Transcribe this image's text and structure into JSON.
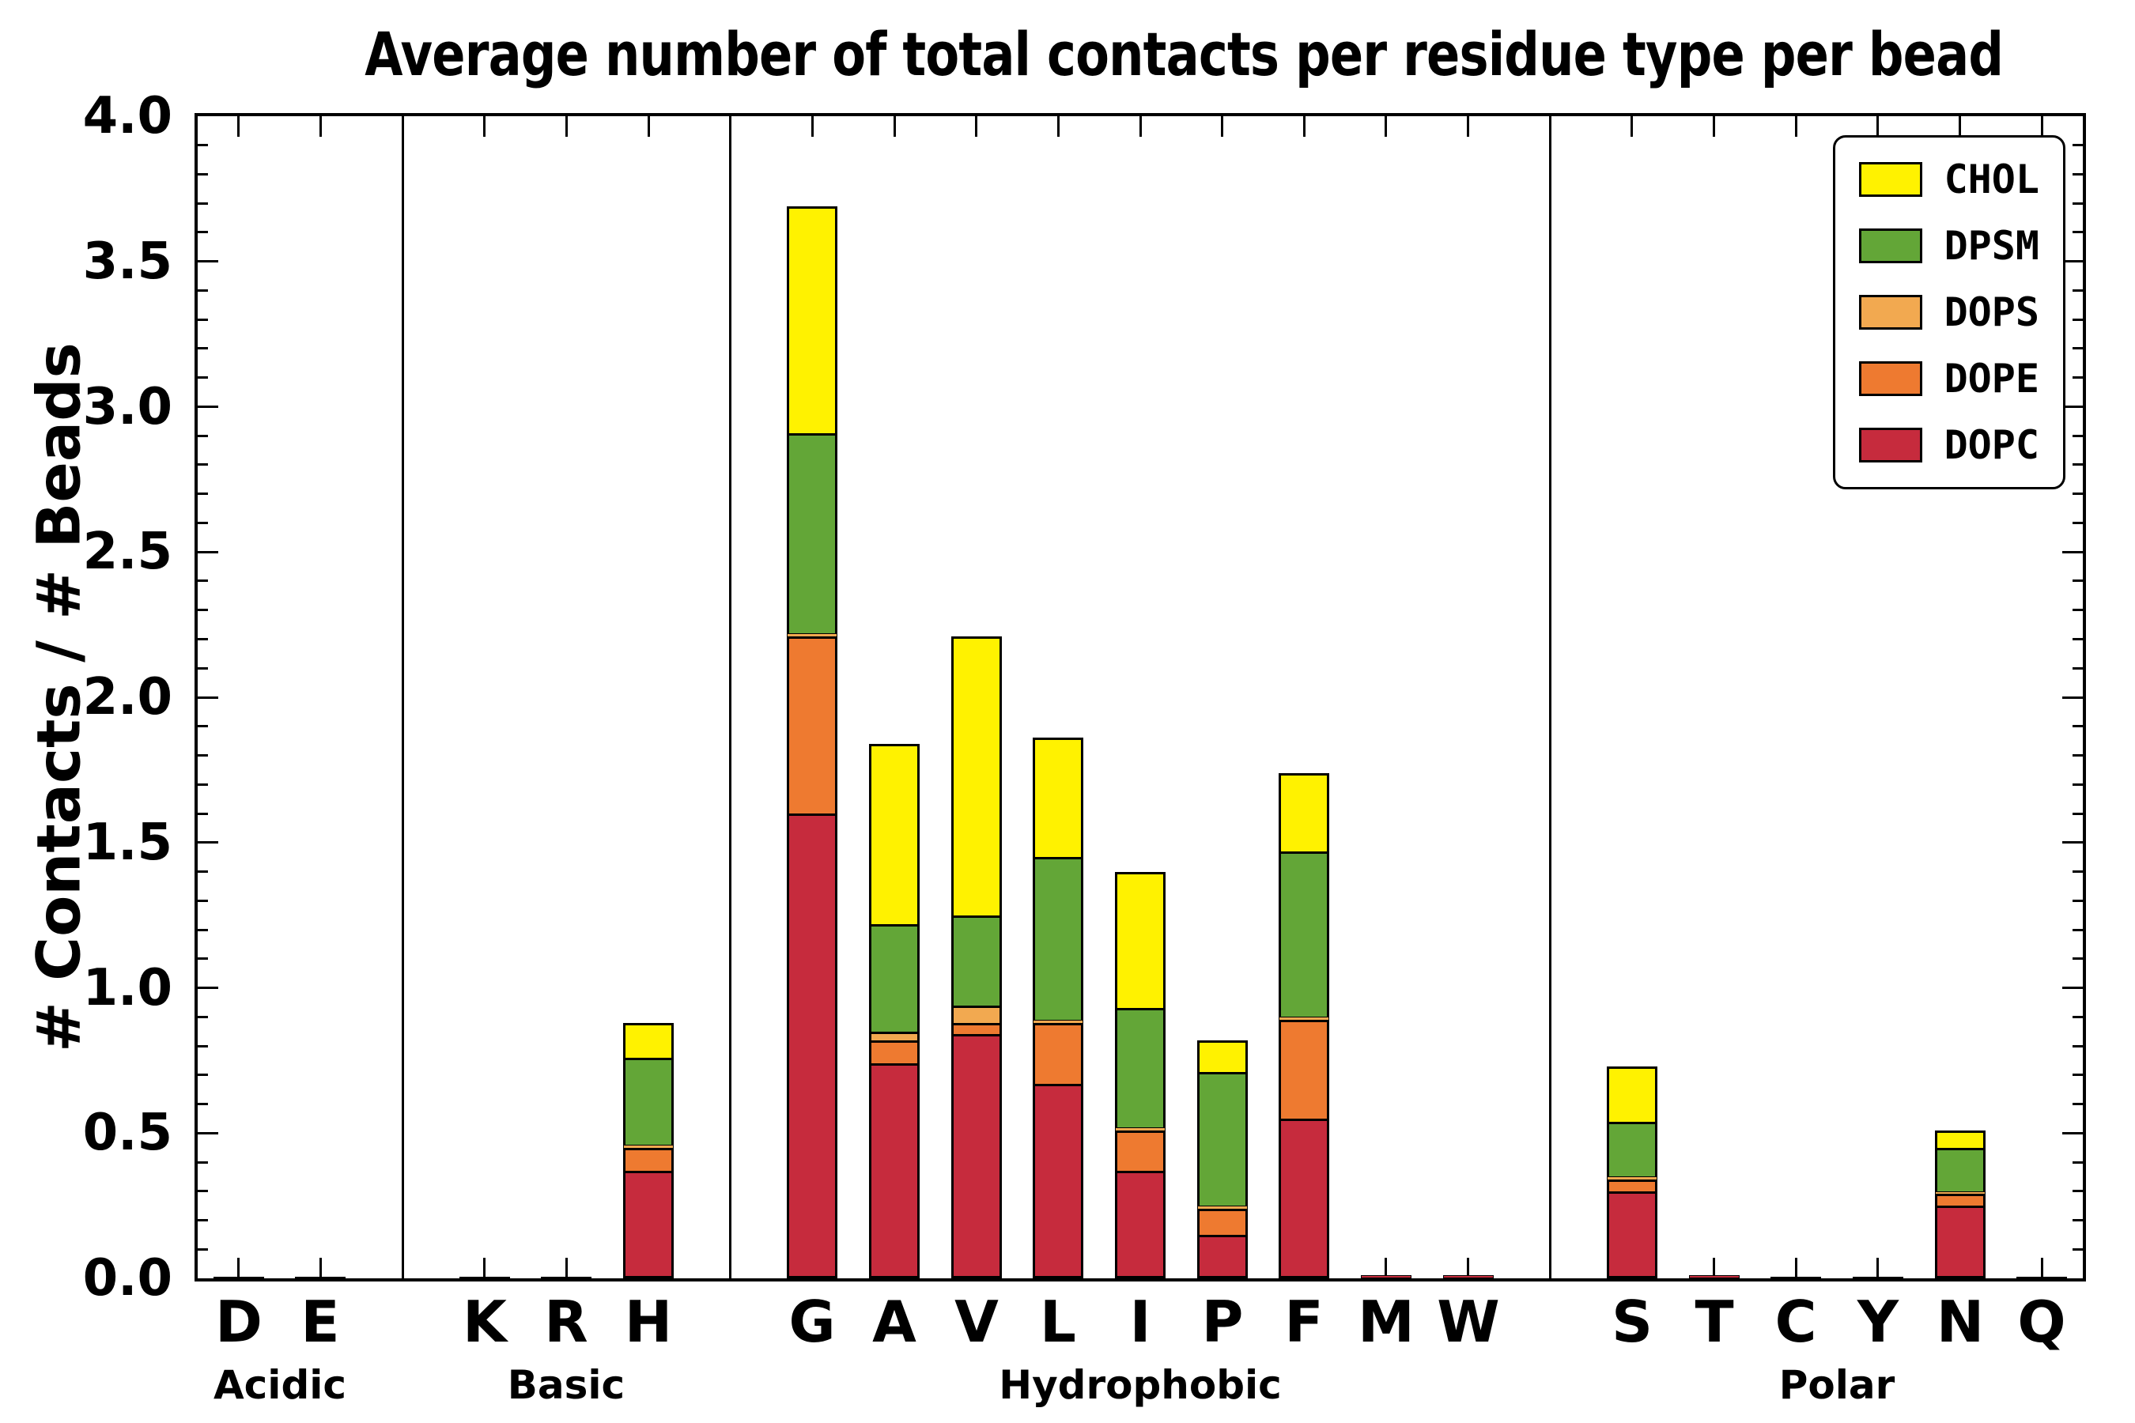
{
  "title": "Average number of total contacts per residue type per bead",
  "y_axis": {
    "label": "# Contacts / # Beads",
    "min": 0.0,
    "max": 4.0,
    "major_step": 0.5,
    "minor_step": 0.1,
    "tick_labels": [
      "0.0",
      "0.5",
      "1.0",
      "1.5",
      "2.0",
      "2.5",
      "3.0",
      "3.5",
      "4.0"
    ]
  },
  "legend": {
    "position": "top-right",
    "entries": [
      "CHOL",
      "DPSM",
      "DOPS",
      "DOPE",
      "DOPC"
    ]
  },
  "chart_data": {
    "type": "bar",
    "stacked": true,
    "ylim": [
      0.0,
      4.0
    ],
    "grid": false,
    "groups": [
      {
        "label": "Acidic",
        "categories": [
          "D",
          "E"
        ]
      },
      {
        "label": "Basic",
        "categories": [
          "K",
          "R",
          "H"
        ]
      },
      {
        "label": "Hydrophobic",
        "categories": [
          "G",
          "A",
          "V",
          "L",
          "I",
          "P",
          "F",
          "M",
          "W"
        ]
      },
      {
        "label": "Polar",
        "categories": [
          "S",
          "T",
          "C",
          "Y",
          "N",
          "Q"
        ]
      }
    ],
    "categories": [
      "D",
      "E",
      "K",
      "R",
      "H",
      "G",
      "A",
      "V",
      "L",
      "I",
      "P",
      "F",
      "M",
      "W",
      "S",
      "T",
      "C",
      "Y",
      "N",
      "Q"
    ],
    "series": [
      {
        "name": "DOPC",
        "color": "#C62B3D",
        "values": [
          0.005,
          0.005,
          0.005,
          0.005,
          0.37,
          1.6,
          0.74,
          0.84,
          0.67,
          0.37,
          0.15,
          0.55,
          0.01,
          0.01,
          0.3,
          0.01,
          0.003,
          0.005,
          0.25,
          0.003
        ]
      },
      {
        "name": "DOPE",
        "color": "#EE7A30",
        "values": [
          0,
          0,
          0,
          0,
          0.08,
          0.61,
          0.08,
          0.04,
          0.21,
          0.14,
          0.09,
          0.34,
          0,
          0,
          0.04,
          0,
          0,
          0,
          0.04,
          0
        ]
      },
      {
        "name": "DOPS",
        "color": "#F2A950",
        "values": [
          0,
          0,
          0,
          0,
          0.01,
          0.01,
          0.03,
          0.06,
          0.01,
          0.01,
          0.01,
          0.01,
          0,
          0,
          0.01,
          0,
          0,
          0,
          0.01,
          0
        ]
      },
      {
        "name": "DPSM",
        "color": "#63A637",
        "values": [
          0,
          0,
          0,
          0,
          0.3,
          0.69,
          0.37,
          0.31,
          0.56,
          0.41,
          0.46,
          0.57,
          0,
          0,
          0.19,
          0,
          0,
          0,
          0.15,
          0
        ]
      },
      {
        "name": "CHOL",
        "color": "#FFF200",
        "values": [
          0,
          0,
          0,
          0,
          0.12,
          0.78,
          0.62,
          0.96,
          0.41,
          0.47,
          0.11,
          0.27,
          0,
          0,
          0.19,
          0,
          0,
          0,
          0.06,
          0
        ]
      }
    ]
  }
}
